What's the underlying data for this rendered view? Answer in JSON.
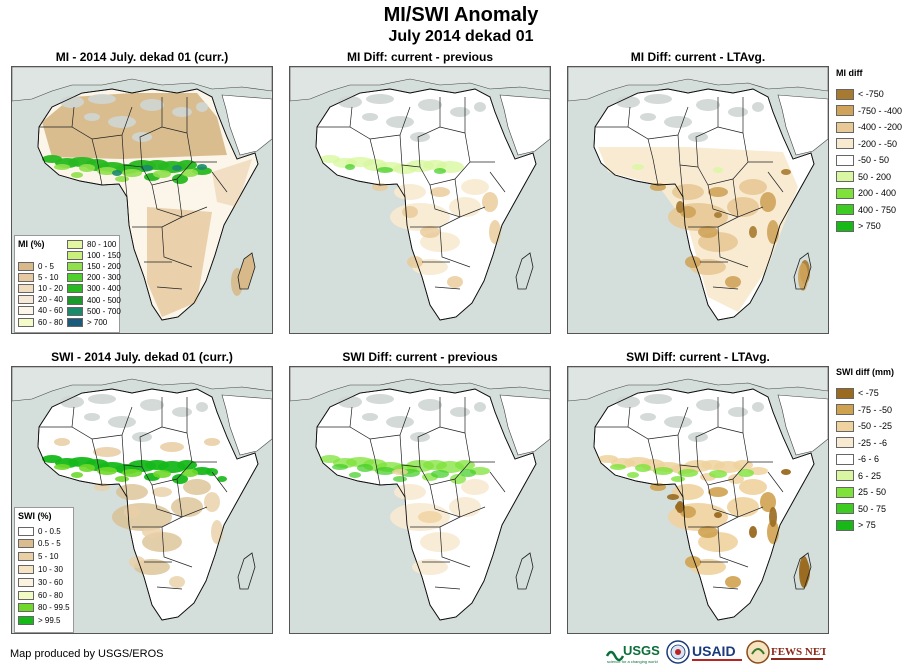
{
  "title": "MI/SWI Anomaly",
  "subtitle": "July 2014 dekad 01",
  "panels": [
    {
      "title": "MI - 2014 July. dekad 01 (curr.)"
    },
    {
      "title": "MI Diff: current - previous"
    },
    {
      "title": "MI Diff: current - LTAvg."
    },
    {
      "title": "SWI - 2014 July. dekad 01 (curr.)"
    },
    {
      "title": "SWI Diff: current - previous"
    },
    {
      "title": "SWI Diff: current - LTAvg."
    }
  ],
  "mi_legend": {
    "title": "MI (%)",
    "col1": [
      {
        "label": "0 - 5",
        "color": "#d7b98a"
      },
      {
        "label": "5 - 10",
        "color": "#e6c9a0"
      },
      {
        "label": "10 - 20",
        "color": "#f0dcbf"
      },
      {
        "label": "20 - 40",
        "color": "#f7ead8"
      },
      {
        "label": "40 - 60",
        "color": "#fbf5ea"
      },
      {
        "label": "60 - 80",
        "color": "#f4fbc8"
      }
    ],
    "col2": [
      {
        "label": "80 - 100",
        "color": "#e3f7a0"
      },
      {
        "label": "100 - 150",
        "color": "#c8f07a"
      },
      {
        "label": "150 - 200",
        "color": "#8fe04a"
      },
      {
        "label": "200 - 300",
        "color": "#4fd02a"
      },
      {
        "label": "300 - 400",
        "color": "#28b820"
      },
      {
        "label": "400 - 500",
        "color": "#1a9a2a"
      },
      {
        "label": "500 - 700",
        "color": "#1a8a6a"
      },
      {
        "label": "> 700",
        "color": "#1a5a7a"
      }
    ]
  },
  "swi_legend": {
    "title": "SWI (%)",
    "items": [
      {
        "label": "0 - 0.5",
        "color": "#ffffff"
      },
      {
        "label": "0.5 - 5",
        "color": "#d9bd8e"
      },
      {
        "label": "5 - 10",
        "color": "#e9cfa6"
      },
      {
        "label": "10 - 30",
        "color": "#f7e4c4"
      },
      {
        "label": "30 - 60",
        "color": "#fcf2e0"
      },
      {
        "label": "60 - 80",
        "color": "#f2fbc4"
      },
      {
        "label": "80 - 99.5",
        "color": "#6fd82a"
      },
      {
        "label": "> 99.5",
        "color": "#16b81a"
      }
    ]
  },
  "mi_diff_legend": {
    "title": "MI diff",
    "items": [
      {
        "label": "< -750",
        "color": "#a67a30"
      },
      {
        "label": "-750 - -400",
        "color": "#cfa45a"
      },
      {
        "label": "-400 - -200",
        "color": "#e8c996"
      },
      {
        "label": "-200 - -50",
        "color": "#f8ead0"
      },
      {
        "label": "-50 - 50",
        "color": "#ffffff"
      },
      {
        "label": "50 - 200",
        "color": "#d8f7a0"
      },
      {
        "label": "200 - 400",
        "color": "#7fe23a"
      },
      {
        "label": "400 - 750",
        "color": "#3fcc22"
      },
      {
        "label": "> 750",
        "color": "#18b818"
      }
    ]
  },
  "swi_diff_legend": {
    "title": "SWI diff (mm)",
    "items": [
      {
        "label": "< -75",
        "color": "#9a6a20"
      },
      {
        "label": "-75 - -50",
        "color": "#cfa250"
      },
      {
        "label": "-50 - -25",
        "color": "#efd29e"
      },
      {
        "label": "-25 - -6",
        "color": "#f8ead2"
      },
      {
        "label": "-6 - 6",
        "color": "#ffffff"
      },
      {
        "label": "6 - 25",
        "color": "#d8f7a0"
      },
      {
        "label": "25 - 50",
        "color": "#7fe23a"
      },
      {
        "label": "50 - 75",
        "color": "#3fcc22"
      },
      {
        "label": "> 75",
        "color": "#18b818"
      }
    ]
  },
  "credit": "Map produced by USGS/EROS",
  "logos": {
    "usgs": "USGS",
    "usgs_tag": "science for a changing world",
    "usaid": "USAID",
    "fewsnet": "FEWS NET"
  },
  "colors": {
    "ocean": "#d4dedb",
    "sahara": "#c9a46a",
    "sahel_green": "#2fbf22",
    "desert_grey": "#cfd6d3"
  }
}
